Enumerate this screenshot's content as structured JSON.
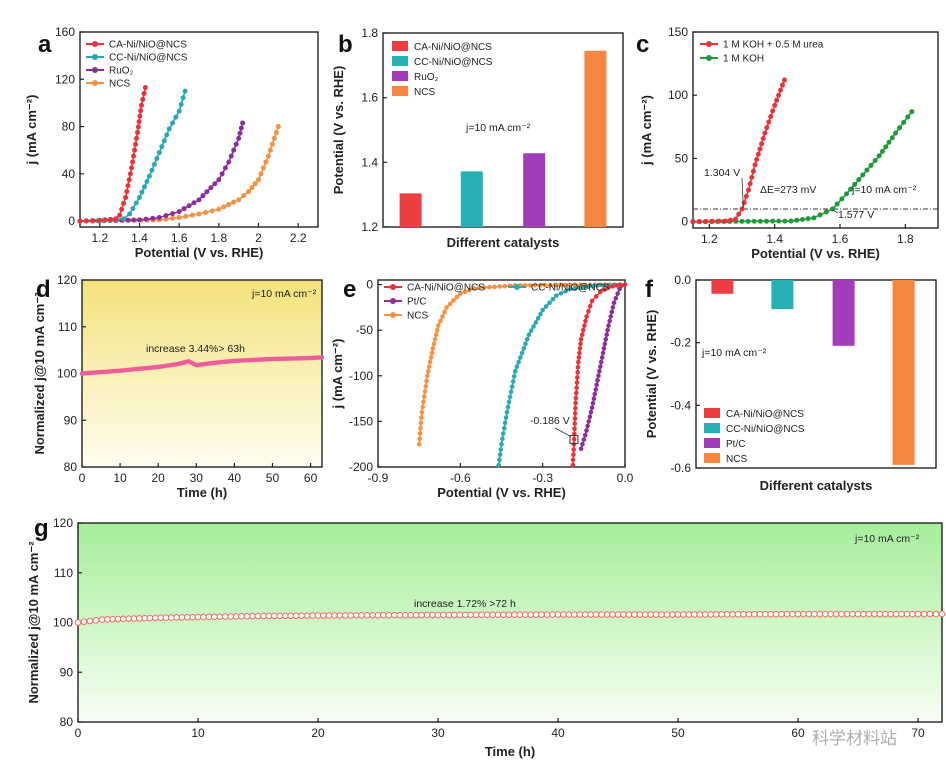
{
  "watermark": "科学材料站",
  "panels": {
    "a": {
      "label": "a"
    },
    "b": {
      "label": "b"
    },
    "c": {
      "label": "c"
    },
    "d": {
      "label": "d"
    },
    "e": {
      "label": "e"
    },
    "f": {
      "label": "f"
    },
    "g": {
      "label": "g"
    }
  },
  "chart_data": [
    {
      "id": "a",
      "type": "line",
      "xlabel": "Potential (V vs. RHE)",
      "ylabel": "j (mA cm⁻²)",
      "xlim": [
        1.1,
        2.3
      ],
      "ylim": [
        -5,
        160
      ],
      "xticks": [
        1.2,
        1.4,
        1.6,
        1.8,
        2.0,
        2.2
      ],
      "yticks": [
        0,
        40,
        80,
        120,
        160
      ],
      "legend_position": "top-left",
      "series": [
        {
          "name": "CA-Ni/NiO@NCS",
          "color": "#e8333a",
          "x": [
            1.1,
            1.2,
            1.28,
            1.3,
            1.33,
            1.36,
            1.39,
            1.41,
            1.43
          ],
          "y": [
            0,
            0.5,
            2,
            5,
            20,
            45,
            75,
            98,
            113
          ]
        },
        {
          "name": "CC-Ni/NiO@NCS",
          "color": "#2aa8b4",
          "x": [
            1.1,
            1.25,
            1.32,
            1.35,
            1.4,
            1.45,
            1.5,
            1.55,
            1.6,
            1.63
          ],
          "y": [
            0,
            0.5,
            2,
            6,
            20,
            38,
            58,
            78,
            93,
            110
          ]
        },
        {
          "name": "RuO₂",
          "color": "#8b2f9c",
          "x": [
            1.1,
            1.4,
            1.5,
            1.6,
            1.7,
            1.8,
            1.85,
            1.9,
            1.92
          ],
          "y": [
            0,
            1,
            3,
            8,
            18,
            35,
            50,
            70,
            83
          ]
        },
        {
          "name": "NCS",
          "color": "#f39243",
          "x": [
            1.1,
            1.5,
            1.6,
            1.7,
            1.8,
            1.9,
            1.95,
            2.0,
            2.05,
            2.1
          ],
          "y": [
            0,
            1,
            3,
            6,
            10,
            18,
            25,
            35,
            55,
            80
          ]
        }
      ]
    },
    {
      "id": "b",
      "type": "bar",
      "xlabel": "Different catalysts",
      "ylabel": "Potential (V vs. RHE)",
      "ylim": [
        1.2,
        1.8
      ],
      "yticks": [
        1.2,
        1.4,
        1.6,
        1.8
      ],
      "annotation": "j=10 mA cm⁻²",
      "categories": [
        "CA-Ni/NiO@NCS",
        "CC-Ni/NiO@NCS",
        "RuO₂",
        "NCS"
      ],
      "values": [
        1.304,
        1.372,
        1.428,
        1.745
      ],
      "colors": [
        "#ee3e44",
        "#26b0b4",
        "#a23cb8",
        "#f6853e"
      ],
      "legend_position": "top-left"
    },
    {
      "id": "c",
      "type": "line",
      "xlabel": "Potential (V vs. RHE)",
      "ylabel": "j (mA cm⁻²)",
      "xlim": [
        1.15,
        1.9
      ],
      "ylim": [
        -5,
        150
      ],
      "xticks": [
        1.2,
        1.4,
        1.6,
        1.8
      ],
      "yticks": [
        0,
        50,
        100,
        150
      ],
      "legend_position": "top-left",
      "annotations": [
        "1.304 V",
        "ΔE=273 mV",
        "j=10 mA cm⁻²",
        "1.577 V"
      ],
      "reference_line_y": 10,
      "series": [
        {
          "name": "1 M KOH + 0.5 M urea",
          "color": "#e8333a",
          "x": [
            1.15,
            1.25,
            1.28,
            1.3,
            1.32,
            1.34,
            1.37,
            1.4,
            1.43
          ],
          "y": [
            0,
            0.5,
            2,
            10,
            25,
            45,
            70,
            92,
            112
          ]
        },
        {
          "name": "1 M KOH",
          "color": "#1f9a3a",
          "x": [
            1.15,
            1.45,
            1.52,
            1.577,
            1.62,
            1.67,
            1.72,
            1.77,
            1.82
          ],
          "y": [
            0,
            0.5,
            3,
            10,
            22,
            37,
            52,
            70,
            87
          ]
        }
      ]
    },
    {
      "id": "d",
      "type": "line",
      "xlabel": "Time (h)",
      "ylabel": "Normalized j@10 mA cm⁻²",
      "xlim": [
        0,
        63
      ],
      "ylim": [
        80,
        120
      ],
      "xticks": [
        0,
        10,
        20,
        30,
        40,
        50,
        60
      ],
      "yticks": [
        80,
        90,
        100,
        110,
        120
      ],
      "annotations": [
        "j=10 mA cm⁻²",
        "increase 3.44%> 63h"
      ],
      "series": [
        {
          "name": "",
          "color": "#ee5c9b",
          "x": [
            0,
            5,
            10,
            15,
            20,
            25,
            28,
            30,
            35,
            40,
            45,
            50,
            55,
            60,
            63
          ],
          "y": [
            100,
            100.3,
            100.6,
            101,
            101.4,
            102,
            102.6,
            101.8,
            102.3,
            102.7,
            102.9,
            103.1,
            103.2,
            103.3,
            103.44
          ]
        }
      ]
    },
    {
      "id": "e",
      "type": "line",
      "xlabel": "Potential (V vs. RHE)",
      "ylabel": "j (mA cm⁻²)",
      "xlim": [
        -0.9,
        0.0
      ],
      "ylim": [
        -200,
        5
      ],
      "xticks": [
        -0.9,
        -0.6,
        -0.3,
        0.0
      ],
      "yticks": [
        -200,
        -150,
        -100,
        -50,
        0
      ],
      "annotation": "-0.186 V",
      "legend_position": "top-left",
      "series": [
        {
          "name": "CA-Ni/NiO@NCS",
          "color": "#e8333a",
          "x": [
            0.0,
            -0.03,
            -0.06,
            -0.09,
            -0.12,
            -0.14,
            -0.16,
            -0.17,
            -0.18,
            -0.186,
            -0.19
          ],
          "y": [
            0,
            -1,
            -3,
            -8,
            -18,
            -35,
            -60,
            -85,
            -130,
            -175,
            -198
          ]
        },
        {
          "name": "CC-Ni/NiO@NCS",
          "color": "#2aa8b4",
          "x": [
            0.0,
            -0.1,
            -0.2,
            -0.25,
            -0.3,
            -0.35,
            -0.4,
            -0.43,
            -0.45,
            -0.46
          ],
          "y": [
            0,
            -1,
            -5,
            -12,
            -28,
            -55,
            -95,
            -140,
            -175,
            -198
          ]
        },
        {
          "name": "Pt/C",
          "color": "#8b2f9c",
          "x": [
            0.0,
            -0.02,
            -0.04,
            -0.06,
            -0.08,
            -0.1,
            -0.12,
            -0.14,
            -0.16
          ],
          "y": [
            0,
            -5,
            -20,
            -45,
            -75,
            -105,
            -135,
            -160,
            -180
          ]
        },
        {
          "name": "NCS",
          "color": "#f39243",
          "x": [
            0.0,
            -0.4,
            -0.55,
            -0.6,
            -0.65,
            -0.68,
            -0.7,
            -0.72,
            -0.74,
            -0.75
          ],
          "y": [
            0,
            -1,
            -4,
            -10,
            -25,
            -45,
            -70,
            -100,
            -140,
            -175
          ]
        }
      ]
    },
    {
      "id": "f",
      "type": "bar",
      "xlabel": "Different catalysts",
      "ylabel": "Potential (V vs. RHE)",
      "ylim": [
        -0.6,
        0.0
      ],
      "yticks": [
        -0.6,
        -0.4,
        -0.2,
        0.0
      ],
      "annotation": "j=10 mA cm⁻²",
      "categories": [
        "CA-Ni/NiO@NCS",
        "CC-Ni/NiO@NCS",
        "Pt/C",
        "NCS"
      ],
      "values": [
        -0.044,
        -0.093,
        -0.21,
        -0.59
      ],
      "colors": [
        "#ee3e44",
        "#26b0b4",
        "#a23cb8",
        "#f6853e"
      ],
      "legend_position": "bottom-left"
    },
    {
      "id": "g",
      "type": "line",
      "xlabel": "Time (h)",
      "ylabel": "Normalized j@10 mA cm⁻²",
      "xlim": [
        0,
        72
      ],
      "ylim": [
        80,
        120
      ],
      "xticks": [
        0,
        10,
        20,
        30,
        40,
        50,
        60,
        70
      ],
      "yticks": [
        80,
        90,
        100,
        110,
        120
      ],
      "annotations": [
        "j=10 mA cm⁻²",
        "increase  1.72% >72 h"
      ],
      "series": [
        {
          "name": "",
          "color": "#ef6c5e",
          "x": [
            0,
            2,
            6,
            10,
            15,
            20,
            30,
            40,
            50,
            60,
            70,
            72
          ],
          "y": [
            100,
            100.6,
            100.9,
            101.1,
            101.3,
            101.4,
            101.5,
            101.6,
            101.6,
            101.7,
            101.7,
            101.72
          ]
        }
      ]
    }
  ]
}
